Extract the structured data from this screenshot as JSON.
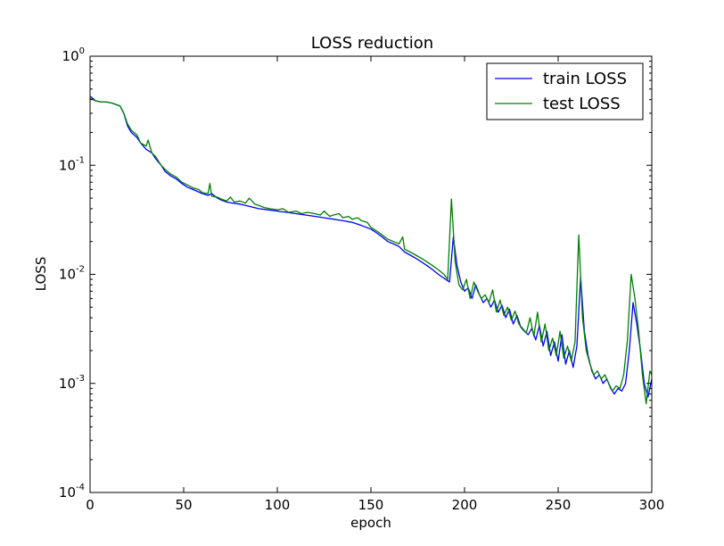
{
  "chart_data": {
    "type": "line",
    "title": "LOSS reduction",
    "xlabel": "epoch",
    "ylabel": "LOSS",
    "xlim": [
      0,
      300
    ],
    "ylim": [
      0.0001,
      1
    ],
    "yscale": "log",
    "grid": false,
    "legend_position": "top-right",
    "x_ticks": [
      "0",
      "50",
      "100",
      "150",
      "200",
      "250",
      "300"
    ],
    "y_ticks": [
      {
        "base": "10",
        "exp": "-4"
      },
      {
        "base": "10",
        "exp": "-3"
      },
      {
        "base": "10",
        "exp": "-2"
      },
      {
        "base": "10",
        "exp": "-1"
      },
      {
        "base": "10",
        "exp": "0"
      }
    ],
    "series": [
      {
        "name": "train LOSS",
        "color": "#0000ff",
        "points": [
          [
            0,
            0.43
          ],
          [
            3,
            0.39
          ],
          [
            6,
            0.38
          ],
          [
            9,
            0.38
          ],
          [
            12,
            0.37
          ],
          [
            16,
            0.35
          ],
          [
            18,
            0.3
          ],
          [
            20,
            0.23
          ],
          [
            22,
            0.2
          ],
          [
            25,
            0.18
          ],
          [
            27,
            0.16
          ],
          [
            30,
            0.14
          ],
          [
            33,
            0.13
          ],
          [
            35,
            0.115
          ],
          [
            38,
            0.1
          ],
          [
            40,
            0.088
          ],
          [
            43,
            0.08
          ],
          [
            46,
            0.075
          ],
          [
            49,
            0.068
          ],
          [
            52,
            0.063
          ],
          [
            55,
            0.06
          ],
          [
            58,
            0.057
          ],
          [
            60,
            0.055
          ],
          [
            63,
            0.053
          ],
          [
            65,
            0.055
          ],
          [
            68,
            0.05
          ],
          [
            70,
            0.048
          ],
          [
            73,
            0.046
          ],
          [
            76,
            0.045
          ],
          [
            80,
            0.044
          ],
          [
            85,
            0.042
          ],
          [
            90,
            0.04
          ],
          [
            95,
            0.039
          ],
          [
            100,
            0.038
          ],
          [
            105,
            0.037
          ],
          [
            110,
            0.036
          ],
          [
            115,
            0.035
          ],
          [
            120,
            0.034
          ],
          [
            125,
            0.033
          ],
          [
            130,
            0.032
          ],
          [
            135,
            0.031
          ],
          [
            140,
            0.03
          ],
          [
            145,
            0.028
          ],
          [
            150,
            0.026
          ],
          [
            153,
            0.024
          ],
          [
            156,
            0.022
          ],
          [
            159,
            0.02
          ],
          [
            162,
            0.019
          ],
          [
            165,
            0.018
          ],
          [
            168,
            0.016
          ],
          [
            171,
            0.015
          ],
          [
            174,
            0.014
          ],
          [
            177,
            0.013
          ],
          [
            180,
            0.012
          ],
          [
            183,
            0.011
          ],
          [
            186,
            0.01
          ],
          [
            189,
            0.0092
          ],
          [
            192,
            0.0085
          ],
          [
            194,
            0.022
          ],
          [
            196,
            0.012
          ],
          [
            198,
            0.0085
          ],
          [
            200,
            0.007
          ],
          [
            202,
            0.0075
          ],
          [
            204,
            0.006
          ],
          [
            206,
            0.008
          ],
          [
            208,
            0.0065
          ],
          [
            210,
            0.0055
          ],
          [
            212,
            0.006
          ],
          [
            214,
            0.005
          ],
          [
            216,
            0.0058
          ],
          [
            218,
            0.0045
          ],
          [
            220,
            0.0052
          ],
          [
            222,
            0.004
          ],
          [
            224,
            0.0048
          ],
          [
            226,
            0.0035
          ],
          [
            228,
            0.0042
          ],
          [
            230,
            0.0033
          ],
          [
            232,
            0.003
          ],
          [
            234,
            0.0028
          ],
          [
            236,
            0.0032
          ],
          [
            238,
            0.0025
          ],
          [
            240,
            0.0034
          ],
          [
            242,
            0.0022
          ],
          [
            244,
            0.003
          ],
          [
            246,
            0.0018
          ],
          [
            248,
            0.0024
          ],
          [
            250,
            0.0016
          ],
          [
            252,
            0.0028
          ],
          [
            254,
            0.0015
          ],
          [
            256,
            0.002
          ],
          [
            258,
            0.0014
          ],
          [
            260,
            0.0022
          ],
          [
            262,
            0.0095
          ],
          [
            264,
            0.003
          ],
          [
            266,
            0.0018
          ],
          [
            268,
            0.0013
          ],
          [
            270,
            0.0011
          ],
          [
            272,
            0.0012
          ],
          [
            274,
            0.001
          ],
          [
            276,
            0.0011
          ],
          [
            278,
            0.0009
          ],
          [
            280,
            0.0008
          ],
          [
            282,
            0.0009
          ],
          [
            284,
            0.00085
          ],
          [
            286,
            0.001
          ],
          [
            288,
            0.002
          ],
          [
            290,
            0.0055
          ],
          [
            292,
            0.0035
          ],
          [
            294,
            0.002
          ],
          [
            296,
            0.001
          ],
          [
            298,
            0.00075
          ],
          [
            300,
            0.0011
          ]
        ]
      },
      {
        "name": "test LOSS",
        "color": "#008000",
        "points": [
          [
            0,
            0.41
          ],
          [
            3,
            0.39
          ],
          [
            6,
            0.38
          ],
          [
            9,
            0.38
          ],
          [
            12,
            0.37
          ],
          [
            16,
            0.35
          ],
          [
            18,
            0.3
          ],
          [
            20,
            0.24
          ],
          [
            22,
            0.21
          ],
          [
            25,
            0.19
          ],
          [
            27,
            0.16
          ],
          [
            30,
            0.15
          ],
          [
            31,
            0.17
          ],
          [
            33,
            0.13
          ],
          [
            35,
            0.12
          ],
          [
            38,
            0.1
          ],
          [
            40,
            0.092
          ],
          [
            43,
            0.083
          ],
          [
            46,
            0.078
          ],
          [
            49,
            0.07
          ],
          [
            52,
            0.066
          ],
          [
            55,
            0.062
          ],
          [
            58,
            0.06
          ],
          [
            60,
            0.056
          ],
          [
            63,
            0.055
          ],
          [
            64,
            0.068
          ],
          [
            65,
            0.052
          ],
          [
            68,
            0.051
          ],
          [
            70,
            0.049
          ],
          [
            73,
            0.047
          ],
          [
            75,
            0.051
          ],
          [
            77,
            0.046
          ],
          [
            80,
            0.047
          ],
          [
            83,
            0.045
          ],
          [
            85,
            0.05
          ],
          [
            88,
            0.044
          ],
          [
            90,
            0.043
          ],
          [
            93,
            0.041
          ],
          [
            96,
            0.04
          ],
          [
            100,
            0.039
          ],
          [
            103,
            0.04
          ],
          [
            106,
            0.037
          ],
          [
            110,
            0.038
          ],
          [
            113,
            0.036
          ],
          [
            116,
            0.037
          ],
          [
            120,
            0.036
          ],
          [
            123,
            0.035
          ],
          [
            125,
            0.038
          ],
          [
            128,
            0.034
          ],
          [
            130,
            0.035
          ],
          [
            133,
            0.036
          ],
          [
            135,
            0.033
          ],
          [
            138,
            0.034
          ],
          [
            140,
            0.032
          ],
          [
            143,
            0.033
          ],
          [
            145,
            0.031
          ],
          [
            148,
            0.03
          ],
          [
            150,
            0.027
          ],
          [
            153,
            0.025
          ],
          [
            156,
            0.023
          ],
          [
            159,
            0.021
          ],
          [
            162,
            0.02
          ],
          [
            165,
            0.019
          ],
          [
            167,
            0.022
          ],
          [
            168,
            0.017
          ],
          [
            171,
            0.016
          ],
          [
            174,
            0.015
          ],
          [
            177,
            0.014
          ],
          [
            180,
            0.013
          ],
          [
            183,
            0.012
          ],
          [
            186,
            0.011
          ],
          [
            189,
            0.01
          ],
          [
            191,
            0.009
          ],
          [
            193,
            0.049
          ],
          [
            195,
            0.013
          ],
          [
            197,
            0.008
          ],
          [
            199,
            0.0072
          ],
          [
            201,
            0.009
          ],
          [
            203,
            0.006
          ],
          [
            205,
            0.0085
          ],
          [
            207,
            0.007
          ],
          [
            209,
            0.006
          ],
          [
            211,
            0.0065
          ],
          [
            213,
            0.0055
          ],
          [
            215,
            0.0072
          ],
          [
            217,
            0.0045
          ],
          [
            219,
            0.0058
          ],
          [
            221,
            0.0042
          ],
          [
            223,
            0.005
          ],
          [
            225,
            0.0038
          ],
          [
            227,
            0.0046
          ],
          [
            229,
            0.0035
          ],
          [
            231,
            0.0032
          ],
          [
            233,
            0.0029
          ],
          [
            235,
            0.004
          ],
          [
            237,
            0.0027
          ],
          [
            239,
            0.0045
          ],
          [
            241,
            0.0024
          ],
          [
            243,
            0.0035
          ],
          [
            245,
            0.002
          ],
          [
            247,
            0.0026
          ],
          [
            249,
            0.0018
          ],
          [
            251,
            0.003
          ],
          [
            253,
            0.0017
          ],
          [
            255,
            0.0022
          ],
          [
            257,
            0.0016
          ],
          [
            259,
            0.0024
          ],
          [
            261,
            0.023
          ],
          [
            263,
            0.004
          ],
          [
            265,
            0.002
          ],
          [
            267,
            0.0015
          ],
          [
            269,
            0.0012
          ],
          [
            271,
            0.0013
          ],
          [
            273,
            0.0011
          ],
          [
            275,
            0.0012
          ],
          [
            277,
            0.001
          ],
          [
            279,
            0.00085
          ],
          [
            281,
            0.00095
          ],
          [
            283,
            0.0009
          ],
          [
            285,
            0.0012
          ],
          [
            287,
            0.0025
          ],
          [
            289,
            0.01
          ],
          [
            291,
            0.006
          ],
          [
            293,
            0.003
          ],
          [
            295,
            0.0012
          ],
          [
            297,
            0.00065
          ],
          [
            299,
            0.0013
          ],
          [
            300,
            0.0012
          ]
        ]
      }
    ]
  }
}
